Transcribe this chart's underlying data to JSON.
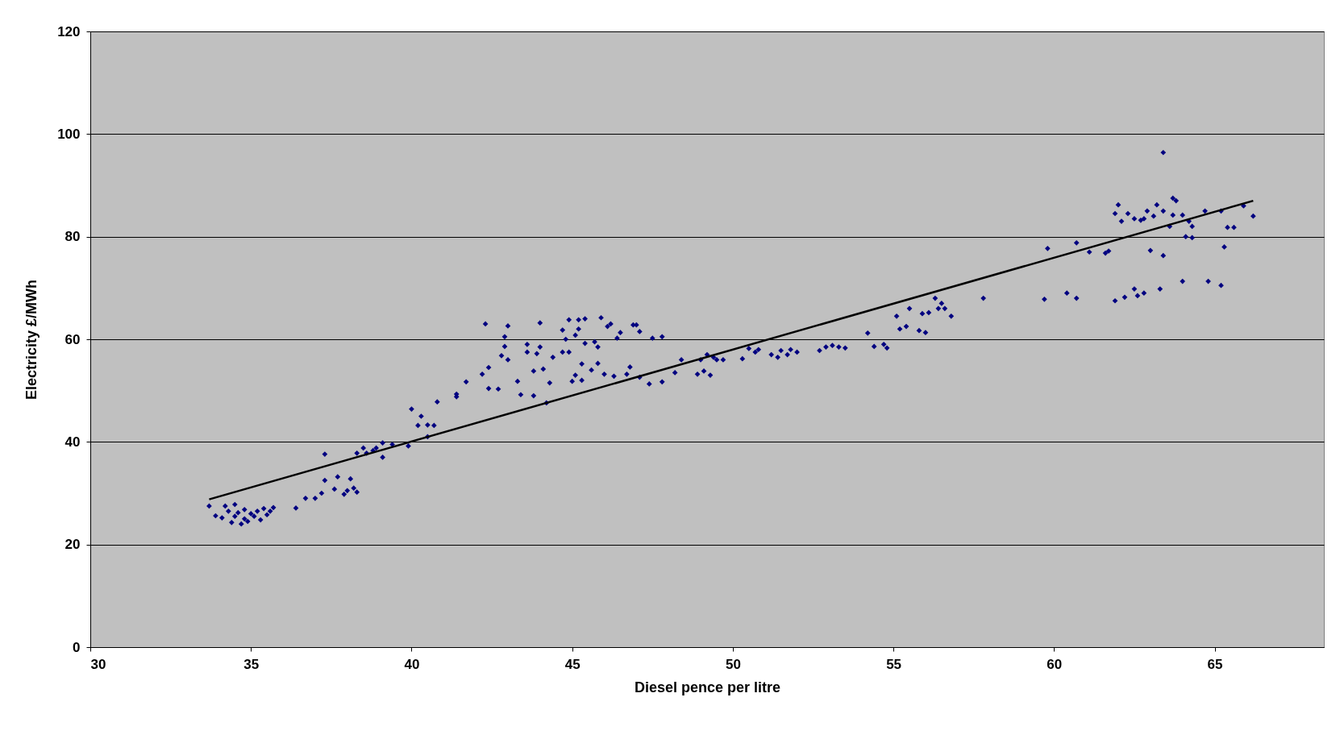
{
  "chart_data": {
    "type": "scatter",
    "xlabel": "Diesel pence per litre",
    "ylabel": "Electricity £/MWh",
    "xlim": [
      30,
      68.4
    ],
    "xticks": [
      30,
      35,
      40,
      45,
      50,
      55,
      60,
      65
    ],
    "ylim": [
      0,
      120
    ],
    "yticks": [
      0,
      20,
      40,
      60,
      80,
      100,
      120
    ],
    "grid": "y",
    "series": [
      {
        "color": "#000080",
        "marker": "diamond",
        "x": [
          33.7,
          33.9,
          34.1,
          34.2,
          34.3,
          34.4,
          34.5,
          34.5,
          34.6,
          34.7,
          34.8,
          34.8,
          34.9,
          35.0,
          35.1,
          35.2,
          35.3,
          35.4,
          35.5,
          35.6,
          35.7,
          36.4,
          36.7,
          37.0,
          37.2,
          37.3,
          37.3,
          37.6,
          37.7,
          37.9,
          38.0,
          38.1,
          38.2,
          38.3,
          38.3,
          38.5,
          38.6,
          38.8,
          38.9,
          39.1,
          39.1,
          39.4,
          39.9,
          40.0,
          40.2,
          40.3,
          40.5,
          40.5,
          40.7,
          40.8,
          41.4,
          41.4,
          41.7,
          42.2,
          42.3,
          42.4,
          42.4,
          42.7,
          42.8,
          42.9,
          42.9,
          43.0,
          43.0,
          43.3,
          43.4,
          43.6,
          43.6,
          43.8,
          43.8,
          43.9,
          44.0,
          44.0,
          44.1,
          44.2,
          44.3,
          44.4,
          44.7,
          44.7,
          44.8,
          44.9,
          44.9,
          45.0,
          45.1,
          45.1,
          45.2,
          45.2,
          45.3,
          45.3,
          45.4,
          45.4,
          45.6,
          45.7,
          45.8,
          45.8,
          45.9,
          46.0,
          46.1,
          46.2,
          46.3,
          46.4,
          46.5,
          46.7,
          46.8,
          46.9,
          47.0,
          47.1,
          47.1,
          47.4,
          47.5,
          47.8,
          47.8,
          48.2,
          48.4,
          48.9,
          49.0,
          49.1,
          49.2,
          49.3,
          49.4,
          49.5,
          49.7,
          50.3,
          50.5,
          50.7,
          50.8,
          51.2,
          51.4,
          51.5,
          51.7,
          51.8,
          52.0,
          52.7,
          52.9,
          53.1,
          53.3,
          53.5,
          54.2,
          54.4,
          54.7,
          54.8,
          55.1,
          55.2,
          55.4,
          55.5,
          55.8,
          55.9,
          56.0,
          56.1,
          56.3,
          56.4,
          56.5,
          56.6,
          56.8,
          57.8,
          59.7,
          59.8,
          60.4,
          60.7,
          60.7,
          61.1,
          61.6,
          61.7,
          61.9,
          61.9,
          62.0,
          62.1,
          62.2,
          62.3,
          62.5,
          62.5,
          62.6,
          62.7,
          62.8,
          62.8,
          62.9,
          63.0,
          63.1,
          63.2,
          63.3,
          63.4,
          63.4,
          63.4,
          63.6,
          63.7,
          63.7,
          63.8,
          64.0,
          64.0,
          64.1,
          64.2,
          64.3,
          64.3,
          64.7,
          64.8,
          65.2,
          65.2,
          65.3,
          65.4,
          65.6,
          65.9,
          66.2
        ],
        "values": [
          27.5,
          25.6,
          25.2,
          27.5,
          26.5,
          24.3,
          27.8,
          25.5,
          26.2,
          24.0,
          25.0,
          26.8,
          24.5,
          26.0,
          25.5,
          26.5,
          24.8,
          27.0,
          25.8,
          26.5,
          27.2,
          27.1,
          29.0,
          29.0,
          30.0,
          32.5,
          37.6,
          30.8,
          33.2,
          29.8,
          30.5,
          32.8,
          31.0,
          30.2,
          37.8,
          38.8,
          37.8,
          38.3,
          38.8,
          37.0,
          39.8,
          39.5,
          39.2,
          46.4,
          43.2,
          45.0,
          41.0,
          43.3,
          43.2,
          47.8,
          48.8,
          49.3,
          51.7,
          53.2,
          63.0,
          54.5,
          50.4,
          50.3,
          56.8,
          60.5,
          58.6,
          62.6,
          56.0,
          51.8,
          49.2,
          59.0,
          57.5,
          49.0,
          53.8,
          57.2,
          58.5,
          63.2,
          54.2,
          47.6,
          51.5,
          56.5,
          57.5,
          61.8,
          60.0,
          57.5,
          63.8,
          51.8,
          53.0,
          60.8,
          62.0,
          63.8,
          55.2,
          52.0,
          59.2,
          64.0,
          54.0,
          59.5,
          58.5,
          55.3,
          64.2,
          53.2,
          62.5,
          63.0,
          52.8,
          60.2,
          61.3,
          53.2,
          54.6,
          62.8,
          62.8,
          61.5,
          52.6,
          51.3,
          60.2,
          51.7,
          60.5,
          53.5,
          56.0,
          53.2,
          56.0,
          53.8,
          57.0,
          53.0,
          56.5,
          56.0,
          56.0,
          56.2,
          58.2,
          57.5,
          58.0,
          57.0,
          56.5,
          57.8,
          57.0,
          58.0,
          57.5,
          57.8,
          58.5,
          58.8,
          58.5,
          58.3,
          61.2,
          58.6,
          59.0,
          58.3,
          64.5,
          62.0,
          62.5,
          66.0,
          61.7,
          65.0,
          61.3,
          65.2,
          68.0,
          66.0,
          67.0,
          66.0,
          64.5,
          68.0,
          67.8,
          77.7,
          69.0,
          68.0,
          78.8,
          77.0,
          76.8,
          77.2,
          67.5,
          84.5,
          86.2,
          83.0,
          68.2,
          84.5,
          83.5,
          69.8,
          68.5,
          83.2,
          69.0,
          83.5,
          85.0,
          77.3,
          84.0,
          86.2,
          69.8,
          76.3,
          85.0,
          96.4,
          82.0,
          84.2,
          87.5,
          87.0,
          84.2,
          71.3,
          80.0,
          83.0,
          82.0,
          79.8,
          85.0,
          71.3,
          85.0,
          70.5,
          78.0,
          81.8,
          81.8,
          86.0,
          84.0
        ]
      },
      {
        "type": "line",
        "color": "#000000",
        "marker": "none",
        "line_style": "solid",
        "x": [
          33.7,
          66.2
        ],
        "values": [
          28.8,
          87.0
        ]
      }
    ]
  }
}
